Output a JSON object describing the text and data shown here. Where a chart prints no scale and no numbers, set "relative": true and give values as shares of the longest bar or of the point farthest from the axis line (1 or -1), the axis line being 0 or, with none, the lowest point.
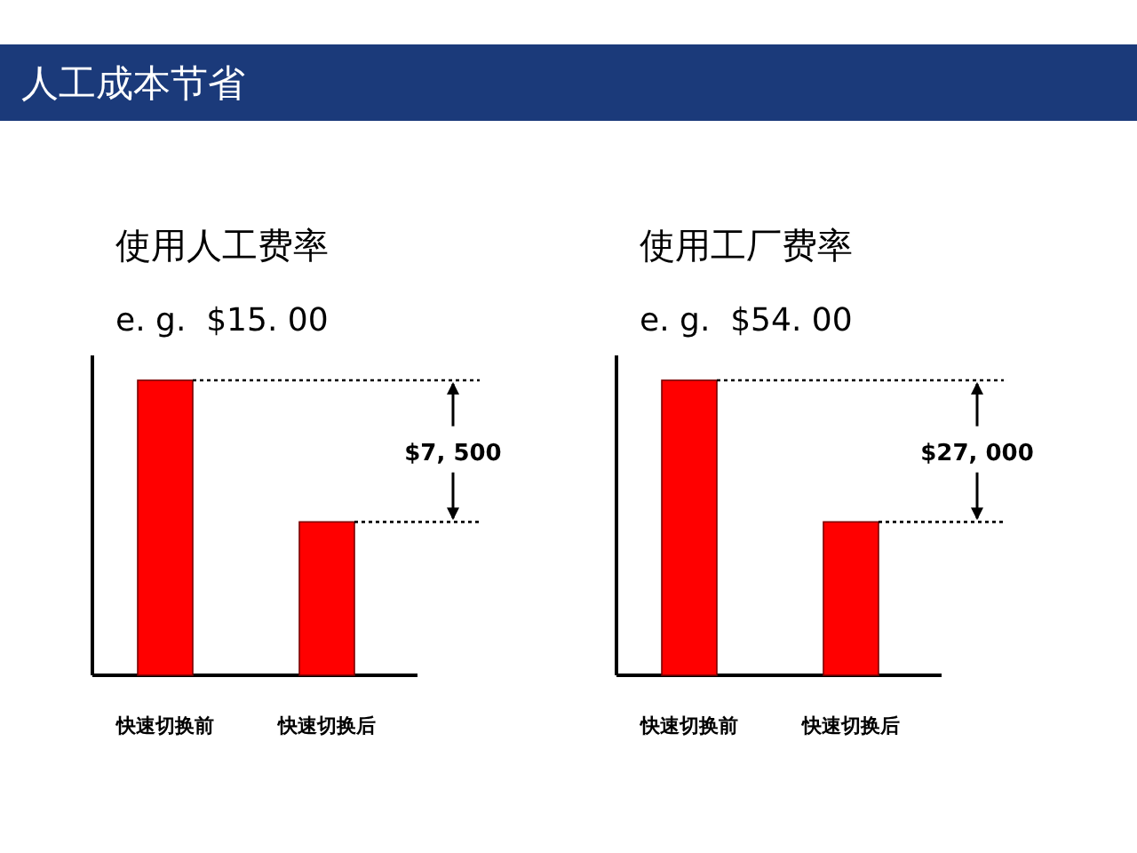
{
  "chart_data": [
    {
      "type": "other",
      "title": "人工成本节省"
    },
    {
      "type": "bar",
      "title": "使用人工费率",
      "subtitle": "e. g.  $15. 00",
      "categories": [
        "快速切换前",
        "快速切换后"
      ],
      "values": [
        1,
        0.52
      ],
      "color": "#ff0000",
      "relative": true,
      "ref_lines": [
        {
          "axis": "y",
          "value": 1,
          "line_style": "dotted"
        },
        {
          "axis": "y",
          "value": 0.52,
          "line_style": "dotted"
        }
      ],
      "annotations": [
        "$7, 500"
      ]
    },
    {
      "type": "bar",
      "title": "使用工厂费率",
      "subtitle": "e. g.  $54. 00",
      "categories": [
        "快速切换前",
        "快速切换后"
      ],
      "values": [
        1,
        0.52
      ],
      "color": "#ff0000",
      "relative": true,
      "ref_lines": [
        {
          "axis": "y",
          "value": 1,
          "line_style": "dotted"
        },
        {
          "axis": "y",
          "value": 0.52,
          "line_style": "dotted"
        }
      ],
      "annotations": [
        "$27, 000"
      ]
    }
  ]
}
